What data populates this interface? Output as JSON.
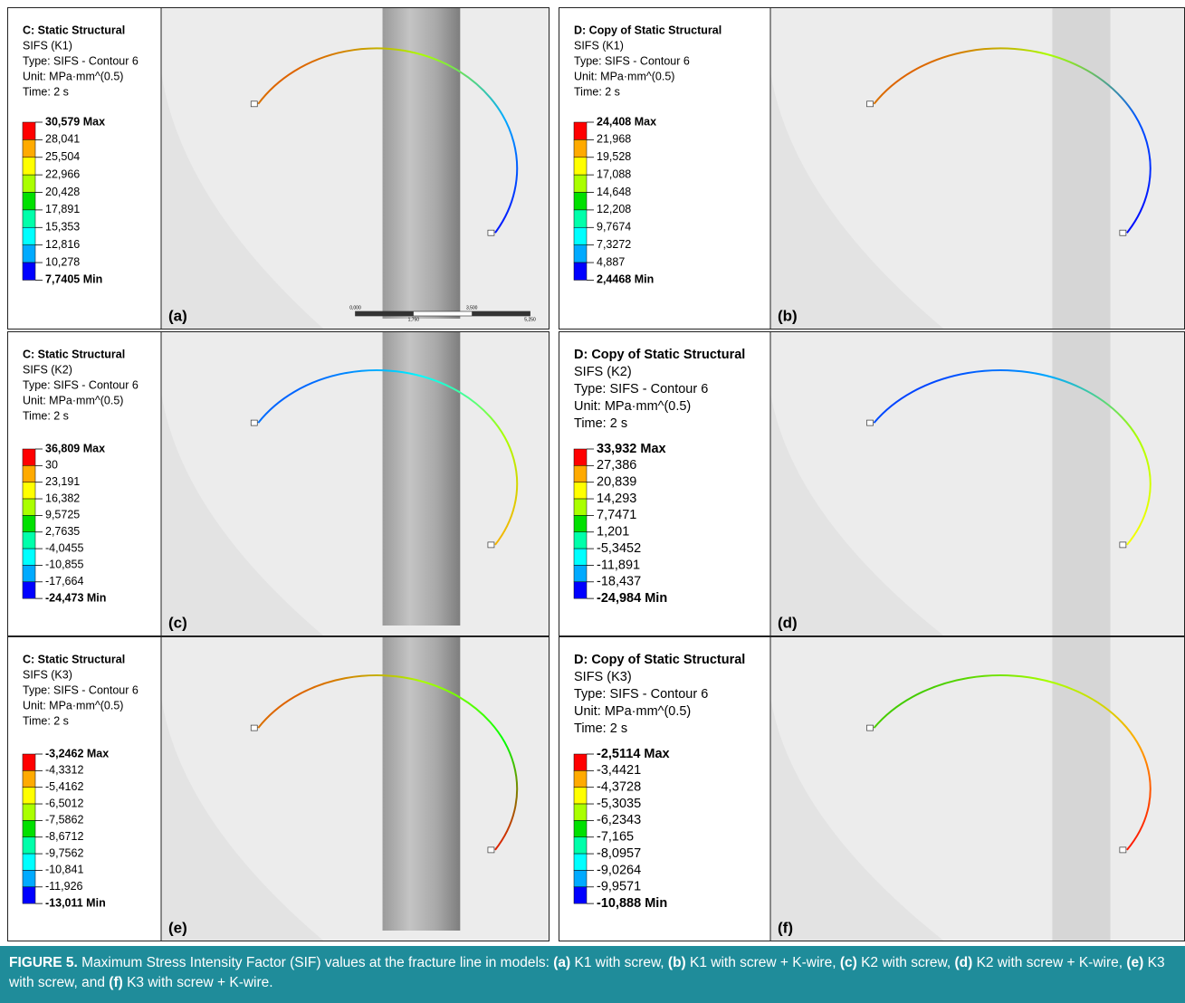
{
  "panels": [
    {
      "label": "(a)",
      "title": "C: Static Structural",
      "result": "SIFS (K1)",
      "type": "Type: SIFS - Contour 6",
      "unit": "Unit: MPa·mm^(0.5)",
      "time": "Time: 2 s",
      "legend": [
        "30,579 Max",
        "28,041",
        "25,504",
        "22,966",
        "20,428",
        "17,891",
        "15,353",
        "12,816",
        "10,278",
        "7,7405 Min"
      ],
      "scale_bar": [
        "0,000",
        "3,500",
        "1,750",
        "5,250"
      ]
    },
    {
      "label": "(b)",
      "title": "D: Copy of Static Structural",
      "result": "SIFS (K1)",
      "type": "Type: SIFS - Contour 6",
      "unit": "Unit: MPa·mm^(0.5)",
      "time": "Time: 2 s",
      "legend": [
        "24,408 Max",
        "21,968",
        "19,528",
        "17,088",
        "14,648",
        "12,208",
        "9,7674",
        "7,3272",
        "4,887",
        "2,4468 Min"
      ]
    },
    {
      "label": "(c)",
      "title": "C: Static Structural",
      "result": "SIFS (K2)",
      "type": "Type: SIFS - Contour 6",
      "unit": "Unit: MPa·mm^(0.5)",
      "time": "Time: 2 s",
      "legend": [
        "36,809 Max",
        "30",
        "23,191",
        "16,382",
        "9,5725",
        "2,7635",
        "-4,0455",
        "-10,855",
        "-17,664",
        "-24,473 Min"
      ]
    },
    {
      "label": "(d)",
      "title": "D: Copy of Static Structural",
      "result": "SIFS (K2)",
      "type": "Type: SIFS - Contour 6",
      "unit": "Unit: MPa·mm^(0.5)",
      "time": "Time: 2 s",
      "legend": [
        "33,932 Max",
        "27,386",
        "20,839",
        "14,293",
        "7,7471",
        "1,201",
        "-5,3452",
        "-11,891",
        "-18,437",
        "-24,984 Min"
      ]
    },
    {
      "label": "(e)",
      "title": "C: Static Structural",
      "result": "SIFS (K3)",
      "type": "Type: SIFS - Contour 6",
      "unit": "Unit: MPa·mm^(0.5)",
      "time": "Time: 2 s",
      "legend": [
        "-3,2462 Max",
        "-4,3312",
        "-5,4162",
        "-6,5012",
        "-7,5862",
        "-8,6712",
        "-9,7562",
        "-10,841",
        "-11,926",
        "-13,011 Min"
      ]
    },
    {
      "label": "(f)",
      "title": "D: Copy of Static Structural",
      "result": "SIFS (K3)",
      "type": "Type: SIFS - Contour 6",
      "unit": "Unit: MPa·mm^(0.5)",
      "time": "Time: 2 s",
      "legend": [
        "-2,5114 Max",
        "-3,4421",
        "-4,3728",
        "-5,3035",
        "-6,2343",
        "-7,165",
        "-8,0957",
        "-9,0264",
        "-9,9571",
        "-10,888 Min"
      ]
    }
  ],
  "caption": {
    "parts": [
      {
        "text": "FIGURE 5.",
        "bold": true
      },
      {
        "text": " Maximum Stress Intensity Factor (SIF) values at the fracture line in models: ",
        "bold": false
      },
      {
        "text": "(a)",
        "bold": true
      },
      {
        "text": " K1 with screw, ",
        "bold": false
      },
      {
        "text": "(b)",
        "bold": true
      },
      {
        "text": " K1 with screw + K-wire, ",
        "bold": false
      },
      {
        "text": "(c)",
        "bold": true
      },
      {
        "text": " K2 with screw, ",
        "bold": false
      },
      {
        "text": "(d)",
        "bold": true
      },
      {
        "text": " K2 with screw + K-wire, ",
        "bold": false
      },
      {
        "text": "(e)",
        "bold": true
      },
      {
        "text": " K3 with screw, and ",
        "bold": false
      },
      {
        "text": "(f)",
        "bold": true
      },
      {
        "text": " K3 with screw + K-wire.",
        "bold": false
      }
    ]
  }
}
